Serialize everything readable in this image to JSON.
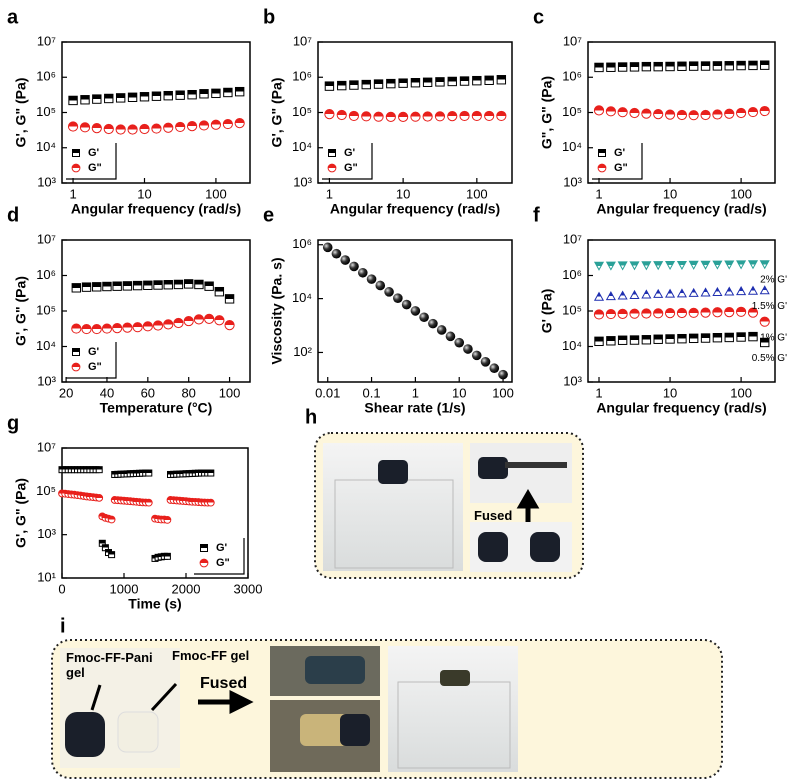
{
  "chart_data": [
    {
      "type": "scatter",
      "label": "a",
      "xlabel": "Angular frequency (rad/s)",
      "ylabel": "G', G\" (Pa)",
      "xscale": "log",
      "yscale": "log",
      "xlim": [
        0.7,
        300
      ],
      "ylim": [
        1000,
        10000000
      ],
      "xticks": [
        1,
        10,
        100
      ],
      "yticks": [
        {
          "value": 1000,
          "label": "10³"
        },
        {
          "value": 10000,
          "label": "10⁴"
        },
        {
          "value": 100000,
          "label": "10⁵"
        },
        {
          "value": 1000000,
          "label": "10⁶"
        },
        {
          "value": 10000000,
          "label": "10⁷"
        }
      ],
      "legend": "lower left",
      "x": [
        1,
        1.47,
        2.15,
        3.16,
        4.64,
        6.81,
        10,
        14.7,
        21.5,
        31.6,
        46.4,
        68.1,
        100,
        147,
        215
      ],
      "series": [
        {
          "name": "G'",
          "color": "#000000",
          "marker": "square",
          "values": [
            220000,
            230000,
            240000,
            250000,
            260000,
            270000,
            280000,
            290000,
            300000,
            310000,
            320000,
            340000,
            350000,
            370000,
            390000
          ]
        },
        {
          "name": "G\"",
          "color": "#e8201c",
          "marker": "circle",
          "values": [
            40000,
            38000,
            36000,
            34000,
            33000,
            33000,
            34000,
            35000,
            37000,
            39000,
            41000,
            43000,
            45000,
            47000,
            50000
          ]
        }
      ]
    },
    {
      "type": "scatter",
      "label": "b",
      "xlabel": "Angular frequency (rad/s)",
      "ylabel": "G', G\" (Pa)",
      "xscale": "log",
      "yscale": "log",
      "xlim": [
        0.7,
        300
      ],
      "ylim": [
        1000,
        10000000
      ],
      "xticks": [
        1,
        10,
        100
      ],
      "yticks": [
        {
          "value": 1000,
          "label": "10³"
        },
        {
          "value": 10000,
          "label": "10⁴"
        },
        {
          "value": 100000,
          "label": "10⁵"
        },
        {
          "value": 1000000,
          "label": "10⁶"
        },
        {
          "value": 10000000,
          "label": "10⁷"
        }
      ],
      "legend": "lower left",
      "x": [
        1,
        1.47,
        2.15,
        3.16,
        4.64,
        6.81,
        10,
        14.7,
        21.5,
        31.6,
        46.4,
        68.1,
        100,
        147,
        215
      ],
      "series": [
        {
          "name": "G'",
          "color": "#000000",
          "marker": "square",
          "values": [
            560000,
            580000,
            600000,
            620000,
            640000,
            660000,
            680000,
            700000,
            720000,
            740000,
            760000,
            780000,
            800000,
            820000,
            850000
          ]
        },
        {
          "name": "G\"",
          "color": "#e8201c",
          "marker": "circle",
          "values": [
            90000,
            85000,
            80000,
            78000,
            76000,
            75000,
            75000,
            76000,
            77000,
            78000,
            79000,
            80000,
            80000,
            80000,
            80000
          ]
        }
      ]
    },
    {
      "type": "scatter",
      "label": "c",
      "xlabel": "Angular frequency (rad/s)",
      "ylabel": "G\", G\" (Pa)",
      "xscale": "log",
      "yscale": "log",
      "xlim": [
        0.7,
        300
      ],
      "ylim": [
        1000,
        10000000
      ],
      "xticks": [
        1,
        10,
        100
      ],
      "yticks": [
        {
          "value": 1000,
          "label": "10³"
        },
        {
          "value": 10000,
          "label": "10⁴"
        },
        {
          "value": 100000,
          "label": "10⁵"
        },
        {
          "value": 1000000,
          "label": "10⁶"
        },
        {
          "value": 10000000,
          "label": "10⁷"
        }
      ],
      "legend": "lower left",
      "x": [
        1,
        1.47,
        2.15,
        3.16,
        4.64,
        6.81,
        10,
        14.7,
        21.5,
        31.6,
        46.4,
        68.1,
        100,
        147,
        215
      ],
      "series": [
        {
          "name": "G'",
          "color": "#000000",
          "marker": "square",
          "values": [
            1900000,
            1920000,
            1950000,
            1970000,
            2000000,
            2000000,
            2020000,
            2050000,
            2070000,
            2080000,
            2100000,
            2120000,
            2150000,
            2170000,
            2200000
          ]
        },
        {
          "name": "G\"",
          "color": "#e8201c",
          "marker": "circle",
          "values": [
            115000,
            108000,
            102000,
            97000,
            93000,
            90000,
            87000,
            85000,
            84000,
            85000,
            88000,
            92000,
            97000,
            103000,
            110000
          ]
        }
      ]
    },
    {
      "type": "scatter",
      "label": "d",
      "xlabel": "Temperature (°C)",
      "ylabel": "G', G\" (Pa)",
      "xscale": "linear",
      "yscale": "log",
      "xlim": [
        18,
        110
      ],
      "ylim": [
        1000,
        10000000
      ],
      "xticks": [
        20,
        40,
        60,
        80,
        100
      ],
      "yticks": [
        {
          "value": 1000,
          "label": "10³"
        },
        {
          "value": 10000,
          "label": "10⁴"
        },
        {
          "value": 100000,
          "label": "10⁵"
        },
        {
          "value": 1000000,
          "label": "10⁶"
        },
        {
          "value": 10000000,
          "label": "10⁷"
        }
      ],
      "legend": "lower left",
      "x": [
        25,
        30,
        35,
        40,
        45,
        50,
        55,
        60,
        65,
        70,
        75,
        80,
        85,
        90,
        95,
        100
      ],
      "series": [
        {
          "name": "G'",
          "color": "#000000",
          "marker": "square",
          "values": [
            450000,
            470000,
            480000,
            490000,
            500000,
            510000,
            520000,
            530000,
            540000,
            550000,
            560000,
            580000,
            560000,
            500000,
            350000,
            220000
          ]
        },
        {
          "name": "G\"",
          "color": "#e8201c",
          "marker": "circle",
          "values": [
            32000,
            31000,
            31000,
            32000,
            33000,
            34000,
            35000,
            37000,
            39000,
            42000,
            46000,
            52000,
            58000,
            60000,
            55000,
            40000
          ]
        }
      ]
    },
    {
      "type": "scatter",
      "label": "e",
      "xlabel": "Shear rate (1/s)",
      "ylabel": "Viscosity (Pa. s)",
      "xscale": "log",
      "yscale": "log",
      "xlim": [
        0.006,
        160
      ],
      "ylim": [
        8,
        1500000
      ],
      "xticks": [
        0.01,
        0.1,
        1,
        10,
        100
      ],
      "yticks": [
        {
          "value": 100,
          "label": "10²"
        },
        {
          "value": 10000,
          "label": "10⁴"
        },
        {
          "value": 1000000,
          "label": "10⁶"
        }
      ],
      "legend": "none",
      "x": [
        0.01,
        0.0158,
        0.0251,
        0.0398,
        0.0631,
        0.1,
        0.158,
        0.251,
        0.398,
        0.631,
        1,
        1.58,
        2.51,
        3.98,
        6.31,
        10,
        15.8,
        25.1,
        39.8,
        63.1,
        100
      ],
      "series": [
        {
          "color": "#222222",
          "marker": "sphere",
          "values": [
            800000,
            464600,
            269800,
            156700,
            91000,
            52860,
            30700,
            17830,
            10360,
            6015,
            3494,
            2029,
            1178,
            684,
            397,
            231,
            134,
            78,
            45,
            26,
            15
          ]
        }
      ]
    },
    {
      "type": "scatter",
      "label": "f",
      "xlabel": "Angular frequency (rad/s)",
      "ylabel": "G' (Pa)",
      "xscale": "log",
      "yscale": "log",
      "xlim": [
        0.7,
        300
      ],
      "ylim": [
        1000,
        10000000
      ],
      "xticks": [
        1,
        10,
        100
      ],
      "yticks": [
        {
          "value": 1000,
          "label": "10³"
        },
        {
          "value": 10000,
          "label": "10⁴"
        },
        {
          "value": 100000,
          "label": "10⁵"
        },
        {
          "value": 1000000,
          "label": "10⁶"
        },
        {
          "value": 10000000,
          "label": "10⁷"
        }
      ],
      "legend": "inline",
      "x": [
        1,
        1.47,
        2.15,
        3.16,
        4.64,
        6.81,
        10,
        14.7,
        21.5,
        31.6,
        46.4,
        68.1,
        100,
        147,
        215
      ],
      "series": [
        {
          "name": "2% G'",
          "color": "#2aa198",
          "marker": "triangle-down",
          "values": [
            1900000,
            1920000,
            1940000,
            1950000,
            1960000,
            1980000,
            2000000,
            2000000,
            2020000,
            2030000,
            2050000,
            2060000,
            2080000,
            2100000,
            2100000
          ]
        },
        {
          "name": "1.5% G'",
          "color": "#1f2fb0",
          "marker": "triangle",
          "values": [
            250000,
            260000,
            270000,
            280000,
            290000,
            300000,
            305000,
            310000,
            320000,
            330000,
            340000,
            350000,
            360000,
            370000,
            380000
          ]
        },
        {
          "name": "1% G'",
          "color": "#e8201c",
          "marker": "circle",
          "values": [
            80000,
            82000,
            83000,
            84000,
            85000,
            86000,
            87000,
            88000,
            89000,
            90000,
            92000,
            93000,
            95000,
            90000,
            50000
          ]
        },
        {
          "name": "0.5% G'",
          "color": "#000000",
          "marker": "square",
          "values": [
            14000,
            14500,
            15000,
            15200,
            15500,
            16000,
            16300,
            16600,
            17000,
            17300,
            17700,
            18000,
            18500,
            19000,
            13000
          ]
        }
      ]
    },
    {
      "type": "scatter",
      "label": "g",
      "xlabel": "Time (s)",
      "ylabel": "G', G\" (Pa)",
      "xscale": "linear",
      "yscale": "log",
      "xlim": [
        0,
        3000
      ],
      "ylim": [
        10,
        10000000
      ],
      "xticks": [
        0,
        1000,
        2000,
        3000
      ],
      "yticks": [
        {
          "value": 10,
          "label": "10¹"
        },
        {
          "value": 1000,
          "label": "10³"
        },
        {
          "value": 100000,
          "label": "10⁵"
        },
        {
          "value": 10000000,
          "label": "10⁷"
        }
      ],
      "legend": "lower right",
      "x": [
        0,
        50,
        100,
        150,
        200,
        250,
        300,
        350,
        400,
        450,
        500,
        550,
        600,
        650,
        700,
        750,
        800,
        850,
        900,
        950,
        1000,
        1050,
        1100,
        1150,
        1200,
        1250,
        1300,
        1350,
        1400,
        1450,
        1500,
        1550,
        1600,
        1650,
        1700,
        1750,
        1800,
        1850,
        1900,
        1950,
        2000,
        2050,
        2100,
        2150,
        2200,
        2250,
        2300,
        2350,
        2400
      ],
      "series": [
        {
          "name": "G'",
          "color": "#000000",
          "marker": "square",
          "values": [
            1000000,
            1000000,
            1000000,
            1000000,
            1000000,
            1000000,
            1000000,
            1000000,
            1000000,
            1000000,
            1000000,
            1000000,
            1000000,
            400,
            250,
            150,
            120,
            600000,
            610000,
            620000,
            630000,
            640000,
            650000,
            660000,
            670000,
            680000,
            690000,
            700000,
            700000,
            null,
            80,
            90,
            95,
            100,
            100,
            600000,
            610000,
            620000,
            630000,
            640000,
            650000,
            660000,
            670000,
            680000,
            690000,
            700000,
            700000,
            700000,
            700000
          ]
        },
        {
          "name": "G\"",
          "color": "#e8201c",
          "marker": "circle",
          "values": [
            80000,
            78000,
            75000,
            72000,
            70000,
            67000,
            64000,
            61000,
            58000,
            56000,
            54000,
            52000,
            50000,
            7000,
            6000,
            5500,
            5000,
            40000,
            39000,
            38000,
            37000,
            36000,
            35000,
            34000,
            33000,
            32000,
            31000,
            30500,
            30000,
            null,
            5500,
            5200,
            5000,
            5000,
            4800,
            40000,
            39000,
            38000,
            37000,
            36000,
            35000,
            34000,
            33000,
            32500,
            32000,
            31000,
            30500,
            30000,
            30000
          ]
        }
      ]
    }
  ],
  "photo_panels": [
    {
      "label": "h",
      "texts": [
        "Fused"
      ]
    },
    {
      "label": "i",
      "texts": [
        "Fmoc-FF-Pani gel",
        "Fmoc-FF gel",
        "Fused"
      ]
    }
  ]
}
